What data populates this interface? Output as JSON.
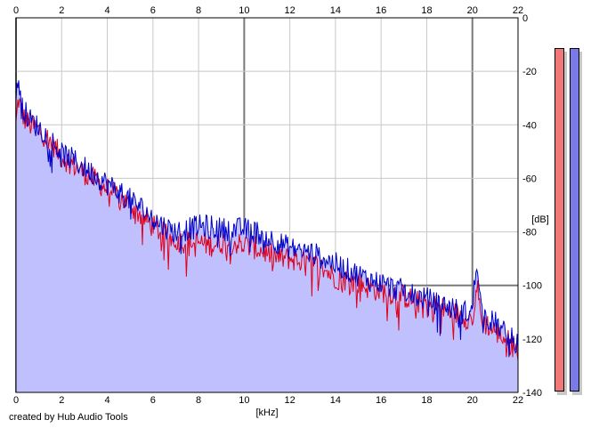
{
  "chart_data": {
    "type": "area",
    "xlabel": "[kHz]",
    "ylabel": "[dB]",
    "xlim": [
      0,
      22
    ],
    "ylim": [
      -140,
      0
    ],
    "x_ticks": [
      0,
      2,
      4,
      6,
      8,
      10,
      12,
      14,
      16,
      18,
      20,
      22
    ],
    "y_ticks": [
      0,
      -20,
      -40,
      -60,
      -80,
      -100,
      -120,
      -140
    ],
    "grid": true,
    "series": [
      {
        "color": "#e0001a",
        "x": [
          0,
          0.1,
          0.3,
          0.6,
          1,
          1.5,
          2,
          2.5,
          3,
          3.5,
          4,
          4.5,
          5,
          5.5,
          6,
          6.5,
          7,
          7.5,
          8,
          8.5,
          9,
          9.5,
          10,
          10.5,
          11,
          11.5,
          12,
          12.5,
          13,
          13.5,
          14,
          14.5,
          15,
          15.5,
          16,
          16.5,
          17,
          17.5,
          18,
          18.5,
          19,
          19.5,
          20,
          20.2,
          20.4,
          20.7,
          21,
          21.3,
          21.6,
          22
        ],
        "y": [
          -40,
          -30,
          -37,
          -40,
          -42,
          -46,
          -52,
          -55,
          -58,
          -61,
          -64,
          -67,
          -70,
          -74,
          -78,
          -81,
          -83,
          -84,
          -84,
          -85,
          -84,
          -84,
          -85,
          -86,
          -88,
          -90,
          -90,
          -91,
          -92,
          -94,
          -97,
          -98,
          -99,
          -101,
          -102,
          -103,
          -104,
          -106,
          -107,
          -108,
          -110,
          -111,
          -113,
          -100,
          -113,
          -115,
          -117,
          -119,
          -121,
          -124
        ]
      },
      {
        "color": "#0000c8",
        "x": [
          0,
          0.1,
          0.3,
          0.6,
          1,
          1.5,
          2,
          2.5,
          3,
          3.5,
          4,
          4.5,
          5,
          5.5,
          6,
          6.5,
          7,
          7.5,
          8,
          8.5,
          9,
          9.5,
          10,
          10.5,
          11,
          11.5,
          12,
          12.5,
          13,
          13.5,
          14,
          14.5,
          15,
          15.5,
          16,
          16.5,
          17,
          17.5,
          18,
          18.5,
          19,
          19.5,
          20,
          20.2,
          20.4,
          20.7,
          21,
          21.3,
          21.6,
          22
        ],
        "y": [
          -32,
          -22,
          -34,
          -38,
          -41,
          -45,
          -51,
          -53,
          -56,
          -59,
          -62,
          -65,
          -68,
          -71,
          -75,
          -78,
          -80,
          -79,
          -78,
          -78,
          -79,
          -79,
          -79,
          -80,
          -82,
          -84,
          -86,
          -87,
          -88,
          -90,
          -92,
          -94,
          -96,
          -98,
          -99,
          -101,
          -102,
          -104,
          -105,
          -107,
          -108,
          -110,
          -110,
          -88,
          -110,
          -113,
          -114,
          -117,
          -119,
          -122
        ]
      }
    ],
    "meters": [
      {
        "color": "#f07878",
        "level": 1.0
      },
      {
        "color": "#7a7ae6",
        "level": 1.0
      }
    ]
  },
  "credit": "created by Hub Audio Tools",
  "colors": {
    "fill": "#c0c0ff",
    "grid_minor": "#c8c8c8",
    "grid_major": "#7a7a7a"
  }
}
